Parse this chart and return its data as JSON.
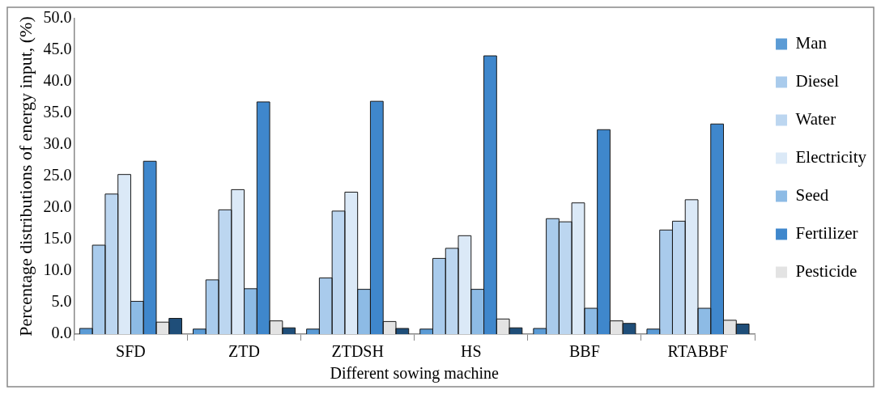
{
  "chart_data": {
    "type": "bar",
    "xlabel": "Different sowing machine",
    "ylabel": "Percentage distributions of energy input, (%)",
    "categories": [
      "SFD",
      "ZTD",
      "ZTDSH",
      "HS",
      "BBF",
      "RTABBF"
    ],
    "series": [
      {
        "name": "Man",
        "color": "#5b9bd5",
        "values": [
          0.9,
          0.8,
          0.8,
          0.8,
          0.9,
          0.8
        ]
      },
      {
        "name": "Diesel",
        "color": "#a9cbec",
        "values": [
          14.1,
          8.6,
          8.9,
          12.0,
          18.3,
          16.5
        ]
      },
      {
        "name": "Water",
        "color": "#bcd6f0",
        "values": [
          22.2,
          19.7,
          19.5,
          13.6,
          17.8,
          17.9
        ]
      },
      {
        "name": "Electricity",
        "color": "#dbe9f7",
        "values": [
          25.3,
          22.9,
          22.5,
          15.6,
          20.8,
          21.3
        ]
      },
      {
        "name": "Seed",
        "color": "#8dbbe5",
        "values": [
          5.2,
          7.2,
          7.1,
          7.1,
          4.1,
          4.1
        ]
      },
      {
        "name": "Fertilizer",
        "color": "#3f87cc",
        "values": [
          27.4,
          36.8,
          36.9,
          44.1,
          32.4,
          33.3
        ]
      },
      {
        "name": "Pesticide",
        "color": "#e3e3e3",
        "values": [
          1.9,
          2.1,
          2.0,
          2.4,
          2.1,
          2.2
        ]
      },
      {
        "color": "#1f4e79",
        "values": [
          2.5,
          1.0,
          0.9,
          1.0,
          1.7,
          1.6
        ]
      }
    ],
    "ylim": [
      0,
      50
    ],
    "yticks": [
      {
        "value": 0,
        "label": "0.0"
      },
      {
        "value": 5,
        "label": "5.0"
      },
      {
        "value": 10,
        "label": "10.0"
      },
      {
        "value": 15,
        "label": "15.0"
      },
      {
        "value": 20,
        "label": "20.0"
      },
      {
        "value": 25,
        "label": "25.0"
      },
      {
        "value": 30,
        "label": "30.0"
      },
      {
        "value": 35,
        "label": "35.0"
      },
      {
        "value": 40,
        "label": "40.0"
      },
      {
        "value": 45,
        "label": "45.0"
      },
      {
        "value": 50,
        "label": "50.0"
      }
    ],
    "grid": false,
    "legend": "right"
  }
}
